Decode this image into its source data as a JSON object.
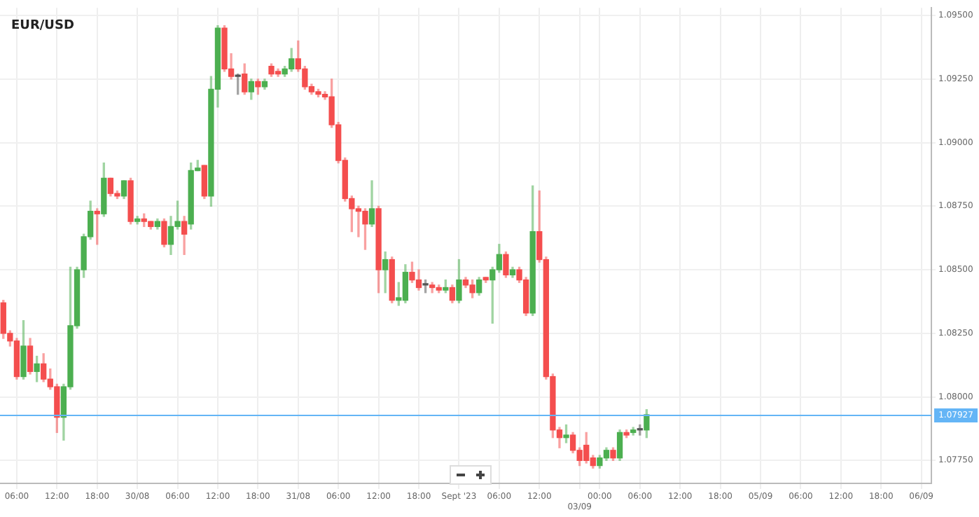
{
  "chart_data": {
    "type": "candlestick",
    "title": "EUR/USD",
    "categories": [
      null,
      null,
      "06:00",
      null,
      null,
      null,
      null,
      null,
      "12:00",
      null,
      null,
      null,
      null,
      null,
      "18:00",
      null,
      null,
      null,
      null,
      null,
      "30/08",
      null,
      null,
      null,
      null,
      null,
      "06:00",
      null,
      null,
      null,
      null,
      null,
      "12:00",
      null,
      null,
      null,
      null,
      null,
      "18:00",
      null,
      null,
      null,
      null,
      null,
      "31/08",
      null,
      null,
      null,
      null,
      null,
      "06:00",
      null,
      null,
      null,
      null,
      null,
      "12:00",
      null,
      null,
      null,
      null,
      null,
      "18:00",
      null,
      null,
      null,
      null,
      null,
      "Sept '23",
      null,
      null,
      null,
      null,
      null,
      "06:00",
      null,
      null,
      null,
      null,
      null,
      "12:00",
      null,
      null,
      null,
      null,
      null,
      "03/09",
      null,
      null,
      "00:00",
      null,
      null,
      null,
      null,
      null,
      "06:00",
      null,
      null,
      null,
      null,
      null,
      "12:00",
      null,
      null,
      null,
      null,
      null,
      "18:00",
      null,
      null,
      null,
      null,
      null,
      "05/09",
      null,
      null,
      null,
      null,
      null,
      "06:00",
      null,
      null,
      null,
      null,
      null,
      "12:00",
      null,
      null,
      null,
      null,
      null,
      "18:00",
      null,
      null,
      null,
      null,
      null,
      "06/09",
      null
    ],
    "ohlc": [
      [
        1.0837,
        1.0838,
        1.0823,
        1.0825
      ],
      [
        1.0825,
        1.0826,
        1.082,
        1.0822
      ],
      [
        1.0822,
        1.0823,
        1.0807,
        1.0808
      ],
      [
        1.0808,
        1.083,
        1.0807,
        1.082
      ],
      [
        1.082,
        1.0823,
        1.0809,
        1.081
      ],
      [
        1.081,
        1.0816,
        1.0806,
        1.0813
      ],
      [
        1.0813,
        1.0817,
        1.0806,
        1.0807
      ],
      [
        1.0807,
        1.0811,
        1.0803,
        1.0804
      ],
      [
        1.0804,
        1.0805,
        1.0786,
        1.0792
      ],
      [
        1.0792,
        1.0805,
        1.0783,
        1.0804
      ],
      [
        1.0804,
        1.0851,
        1.0803,
        1.0828
      ],
      [
        1.0828,
        1.0851,
        1.0827,
        1.085
      ],
      [
        1.085,
        1.0864,
        1.0847,
        1.0863
      ],
      [
        1.0863,
        1.0877,
        1.0862,
        1.0873
      ],
      [
        1.0873,
        1.0874,
        1.086,
        1.0872
      ],
      [
        1.0872,
        1.0892,
        1.0871,
        1.0886
      ],
      [
        1.0886,
        1.0886,
        1.0879,
        1.088
      ],
      [
        1.088,
        1.0881,
        1.0878,
        1.0879
      ],
      [
        1.0879,
        1.0885,
        1.0878,
        1.0885
      ],
      [
        1.0885,
        1.0886,
        1.0868,
        1.0869
      ],
      [
        1.0869,
        1.0871,
        1.0868,
        1.087
      ],
      [
        1.087,
        1.0872,
        1.0867,
        1.0869
      ],
      [
        1.0869,
        1.0869,
        1.0866,
        1.0867
      ],
      [
        1.0867,
        1.087,
        1.0866,
        1.0869
      ],
      [
        1.0869,
        1.087,
        1.0859,
        1.086
      ],
      [
        1.086,
        1.0871,
        1.0856,
        1.0867
      ],
      [
        1.0867,
        1.0877,
        1.0866,
        1.0869
      ],
      [
        1.0869,
        1.0871,
        1.0856,
        1.0864
      ],
      [
        1.0868,
        1.0892,
        1.0866,
        1.0889
      ],
      [
        1.0889,
        1.0893,
        1.0889,
        1.089
      ],
      [
        1.0891,
        1.0891,
        1.0878,
        1.0879
      ],
      [
        1.0879,
        1.0926,
        1.0875,
        1.0921
      ],
      [
        1.0921,
        1.0946,
        1.0914,
        1.0945
      ],
      [
        1.0945,
        1.0946,
        1.0928,
        1.0929
      ],
      [
        1.0929,
        1.0935,
        1.0925,
        1.0926
      ],
      [
        1.0926,
        1.0927,
        1.0919,
        1.0926
      ],
      [
        1.0927,
        1.0931,
        1.0919,
        1.092
      ],
      [
        1.092,
        1.0925,
        1.0917,
        1.0924
      ],
      [
        1.0924,
        1.0925,
        1.0919,
        1.0922
      ],
      [
        1.0922,
        1.0925,
        1.0921,
        1.0924
      ],
      [
        1.093,
        1.0931,
        1.0926,
        1.0927
      ],
      [
        1.0928,
        1.0929,
        1.0926,
        1.0927
      ],
      [
        1.0927,
        1.093,
        1.0926,
        1.0929
      ],
      [
        1.0929,
        1.0937,
        1.0928,
        1.0933
      ],
      [
        1.0933,
        1.094,
        1.0928,
        1.0929
      ],
      [
        1.0929,
        1.093,
        1.0921,
        1.0922
      ],
      [
        1.0922,
        1.0923,
        1.0919,
        1.092
      ],
      [
        1.092,
        1.0921,
        1.0918,
        1.0919
      ],
      [
        1.0919,
        1.092,
        1.0917,
        1.0918
      ],
      [
        1.0918,
        1.0925,
        1.0906,
        1.0907
      ],
      [
        1.0907,
        1.0908,
        1.0892,
        1.0893
      ],
      [
        1.0893,
        1.0894,
        1.0877,
        1.0878
      ],
      [
        1.0878,
        1.0879,
        1.0865,
        1.0874
      ],
      [
        1.0874,
        1.0875,
        1.0863,
        1.0873
      ],
      [
        1.0873,
        1.0874,
        1.0858,
        1.0868
      ],
      [
        1.0868,
        1.0885,
        1.0867,
        1.0874
      ],
      [
        1.0874,
        1.0875,
        1.0841,
        1.085
      ],
      [
        1.085,
        1.0857,
        1.0841,
        1.0854
      ],
      [
        1.0854,
        1.0855,
        1.0837,
        1.0838
      ],
      [
        1.0838,
        1.0845,
        1.0836,
        1.0839
      ],
      [
        1.0838,
        1.0852,
        1.0837,
        1.0849
      ],
      [
        1.0849,
        1.0853,
        1.0845,
        1.0846
      ],
      [
        1.0846,
        1.085,
        1.0842,
        1.0843
      ],
      [
        1.0844,
        1.0846,
        1.0841,
        1.0844
      ],
      [
        1.0844,
        1.0845,
        1.0841,
        1.0843
      ],
      [
        1.0843,
        1.0844,
        1.0841,
        1.0842
      ],
      [
        1.0842,
        1.0846,
        1.0841,
        1.0843
      ],
      [
        1.0843,
        1.0844,
        1.0837,
        1.0838
      ],
      [
        1.0838,
        1.0854,
        1.0837,
        1.0846
      ],
      [
        1.0846,
        1.0847,
        1.0843,
        1.0844
      ],
      [
        1.0844,
        1.0846,
        1.0839,
        1.0841
      ],
      [
        1.0841,
        1.0847,
        1.084,
        1.0846
      ],
      [
        1.0847,
        1.0847,
        1.0845,
        1.0846
      ],
      [
        1.0846,
        1.0851,
        1.0829,
        1.085
      ],
      [
        1.085,
        1.086,
        1.0849,
        1.0856
      ],
      [
        1.0856,
        1.0857,
        1.0847,
        1.0848
      ],
      [
        1.0848,
        1.0851,
        1.0847,
        1.085
      ],
      [
        1.085,
        1.0851,
        1.0845,
        1.0846
      ],
      [
        1.0846,
        1.0847,
        1.0832,
        1.0833
      ],
      [
        1.0833,
        1.0883,
        1.0832,
        1.0865
      ],
      [
        1.0865,
        1.0881,
        1.0853,
        1.0854
      ],
      [
        1.0854,
        1.0855,
        1.0807,
        1.0808
      ],
      [
        1.0808,
        1.0809,
        1.0784,
        1.0787
      ],
      [
        1.0787,
        1.0788,
        1.078,
        1.0784
      ],
      [
        1.0784,
        1.0789,
        1.0782,
        1.0785
      ],
      [
        1.0785,
        1.0786,
        1.0778,
        1.0779
      ],
      [
        1.0779,
        1.078,
        1.0773,
        1.0775
      ],
      [
        1.0781,
        1.0786,
        1.0774,
        1.0775
      ],
      [
        1.0776,
        1.0777,
        1.0772,
        1.0773
      ],
      [
        1.0773,
        1.0777,
        1.0772,
        1.0776
      ],
      [
        1.0776,
        1.078,
        1.0775,
        1.0779
      ],
      [
        1.0779,
        1.078,
        1.0775,
        1.0776
      ],
      [
        1.0776,
        1.0787,
        1.0775,
        1.0786
      ],
      [
        1.0786,
        1.0787,
        1.0784,
        1.0785
      ],
      [
        1.0786,
        1.0788,
        1.0785,
        1.0787
      ],
      [
        1.0787,
        1.0789,
        1.0785,
        1.0787
      ],
      [
        1.0787,
        1.0795,
        1.0784,
        1.0793
      ],
      null,
      null,
      null,
      null,
      null,
      null,
      null,
      null,
      null,
      null,
      null,
      null,
      null,
      null,
      null,
      null,
      null,
      null,
      null,
      null,
      null,
      null,
      null,
      null,
      null,
      null,
      null,
      null,
      null,
      null,
      null,
      null,
      null,
      null,
      null,
      null,
      null,
      null,
      null,
      null,
      null,
      null
    ],
    "ylim": [
      1.0766,
      1.0953
    ],
    "yticks": [
      {
        "value": 1.0775,
        "label": "1.07750"
      },
      {
        "value": 1.08,
        "label": "1.08000"
      },
      {
        "value": 1.0825,
        "label": "1.08250"
      },
      {
        "value": 1.085,
        "label": "1.08500"
      },
      {
        "value": 1.0875,
        "label": "1.08750"
      },
      {
        "value": 1.09,
        "label": "1.09000"
      },
      {
        "value": 1.0925,
        "label": "1.09250"
      },
      {
        "value": 1.095,
        "label": "1.09500"
      }
    ],
    "ref_lines": [
      {
        "axis": "y",
        "value": 1.07927,
        "label": "1.07927",
        "color": "#64b5f6"
      }
    ],
    "grid": true,
    "legend": false
  }
}
